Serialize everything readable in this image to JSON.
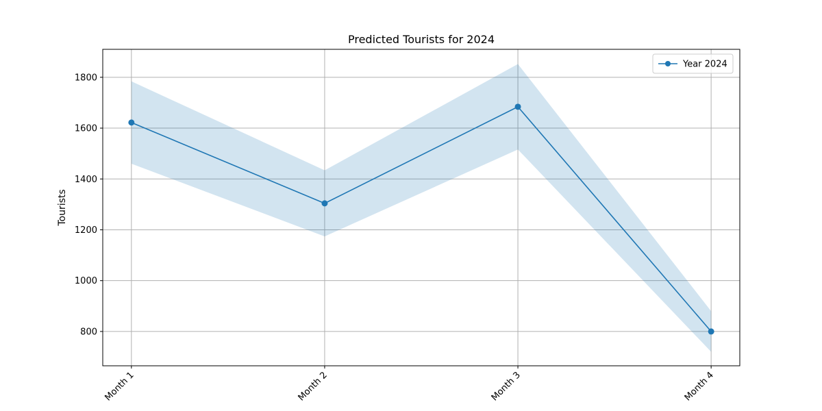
{
  "chart_data": {
    "type": "line",
    "title": "Predicted Tourists for 2024",
    "xlabel": "",
    "ylabel": "Tourists",
    "categories": [
      "Month 1",
      "Month 2",
      "Month 3",
      "Month 4"
    ],
    "series": [
      {
        "name": "Year 2024",
        "values": [
          1622,
          1304,
          1684,
          800
        ],
        "band_lower": [
          1460,
          1174,
          1516,
          720
        ],
        "band_upper": [
          1784,
          1434,
          1852,
          880
        ],
        "color": "#1f77b4",
        "band_color": "#1f77b4"
      }
    ],
    "yticks": [
      800,
      1000,
      1200,
      1400,
      1600,
      1800
    ],
    "ylim": [
      665,
      1910
    ],
    "grid": true,
    "legend_position": "top-right",
    "x_tick_rotation": 45
  }
}
